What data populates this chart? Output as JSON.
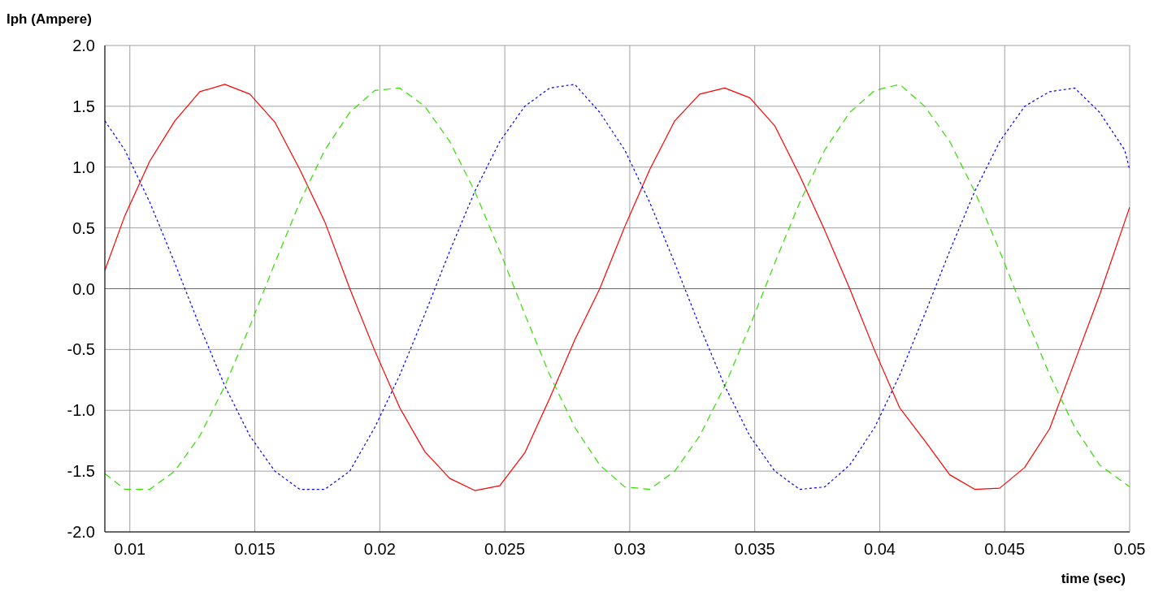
{
  "chart_data": {
    "type": "line",
    "xlabel": "time (sec)",
    "ylabel": "Iph (Ampere)",
    "x": [
      0.009,
      0.0098,
      0.0108,
      0.0118,
      0.0128,
      0.0138,
      0.0148,
      0.0158,
      0.0168,
      0.0178,
      0.0188,
      0.0198,
      0.0208,
      0.0218,
      0.0228,
      0.0238,
      0.0248,
      0.0258,
      0.0268,
      0.0278,
      0.0288,
      0.0298,
      0.0308,
      0.0318,
      0.0328,
      0.0338,
      0.0348,
      0.0358,
      0.0368,
      0.0378,
      0.0388,
      0.0398,
      0.0408,
      0.0418,
      0.0428,
      0.0438,
      0.0448,
      0.0458,
      0.0468,
      0.0478,
      0.0488,
      0.0498,
      0.05
    ],
    "series": [
      {
        "color": "#ff0000",
        "line_style": "solid",
        "values": [
          0.15,
          0.6,
          1.05,
          1.38,
          1.62,
          1.68,
          1.6,
          1.37,
          0.98,
          0.55,
          0.0,
          -0.51,
          -0.98,
          -1.34,
          -1.56,
          -1.66,
          -1.62,
          -1.35,
          -0.9,
          -0.42,
          0.0,
          0.51,
          0.98,
          1.38,
          1.6,
          1.65,
          1.57,
          1.34,
          0.93,
          0.48,
          0.0,
          -0.51,
          -0.98,
          -1.25,
          -1.53,
          -1.65,
          -1.64,
          -1.47,
          -1.15,
          -0.6,
          -0.05,
          0.55,
          0.67
        ]
      },
      {
        "color": "#33dd00",
        "line_style": "dashed",
        "values": [
          -1.52,
          -1.65,
          -1.65,
          -1.5,
          -1.21,
          -0.8,
          -0.31,
          0.21,
          0.71,
          1.14,
          1.45,
          1.63,
          1.65,
          1.5,
          1.21,
          0.8,
          0.31,
          -0.21,
          -0.71,
          -1.14,
          -1.45,
          -1.63,
          -1.65,
          -1.5,
          -1.21,
          -0.8,
          -0.31,
          0.21,
          0.71,
          1.14,
          1.45,
          1.63,
          1.68,
          1.5,
          1.21,
          0.8,
          0.31,
          -0.21,
          -0.71,
          -1.14,
          -1.45,
          -1.6,
          -1.63
        ]
      },
      {
        "color": "#0000ff",
        "line_style": "dotted",
        "values": [
          1.38,
          1.14,
          0.71,
          0.21,
          -0.31,
          -0.8,
          -1.21,
          -1.5,
          -1.65,
          -1.65,
          -1.5,
          -1.14,
          -0.71,
          -0.21,
          0.31,
          0.8,
          1.21,
          1.5,
          1.65,
          1.68,
          1.45,
          1.14,
          0.71,
          0.21,
          -0.31,
          -0.8,
          -1.21,
          -1.5,
          -1.65,
          -1.63,
          -1.45,
          -1.14,
          -0.71,
          -0.21,
          0.31,
          0.8,
          1.21,
          1.5,
          1.62,
          1.65,
          1.45,
          1.14,
          0.98
        ]
      }
    ],
    "xlim": [
      0.009,
      0.05
    ],
    "xticks": [
      0.01,
      0.015,
      0.02,
      0.025,
      0.03,
      0.035,
      0.04,
      0.045,
      0.05
    ],
    "ylim": [
      -2.0,
      2.0
    ],
    "yticks": [
      {
        "value": -2,
        "label": "-2.0"
      },
      {
        "value": -1.5,
        "label": "-1.5"
      },
      {
        "value": -1,
        "label": "-1.0"
      },
      {
        "value": -0.5,
        "label": "-0.5"
      },
      {
        "value": 0,
        "label": "0.0"
      },
      {
        "value": 0.5,
        "label": "0.5"
      },
      {
        "value": 1,
        "label": "1.0"
      },
      {
        "value": 1.5,
        "label": "1.5"
      },
      {
        "value": 2,
        "label": "2.0"
      }
    ],
    "ref_lines": [
      {
        "axis": "y",
        "value": 0,
        "color": "#ff00ff"
      }
    ],
    "grid": true,
    "marker": "none"
  }
}
